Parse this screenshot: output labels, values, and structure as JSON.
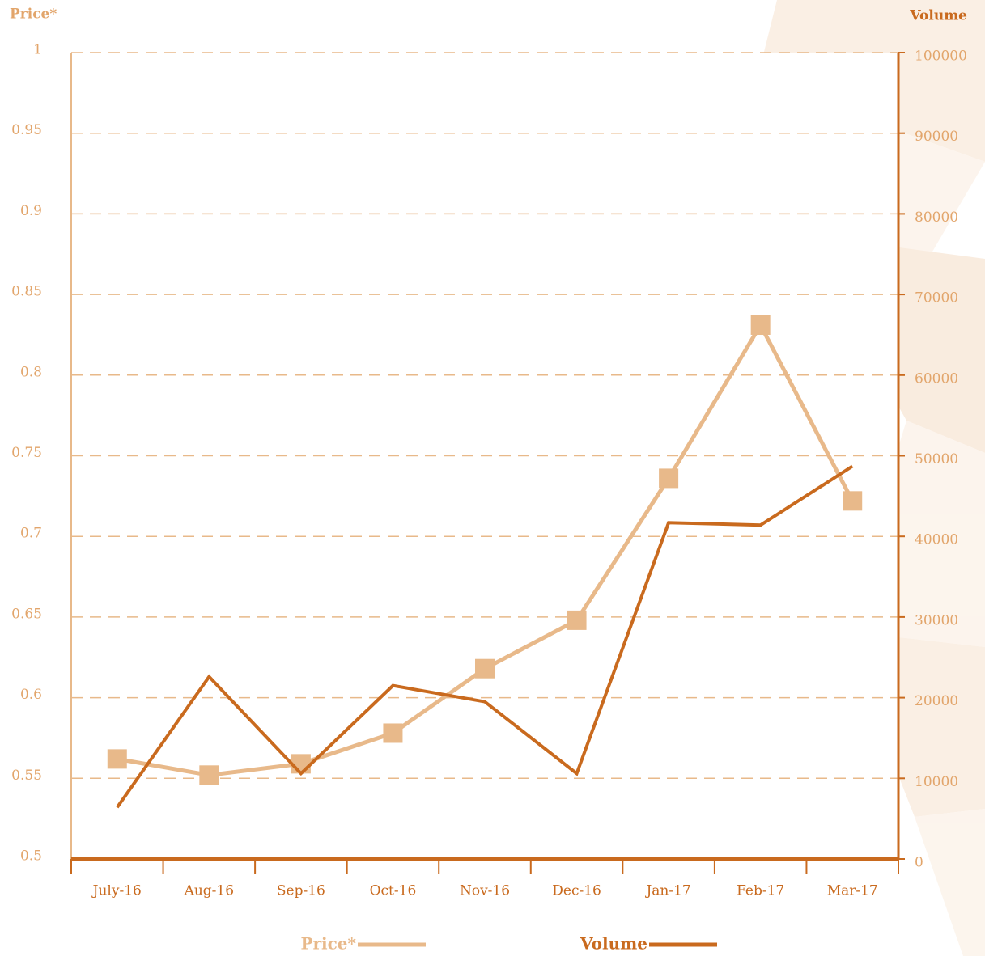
{
  "chart_data": {
    "type": "line",
    "ylabel": "Price*",
    "y2label": "Volume",
    "categories": [
      "July-16",
      "Aug-16",
      "Sep-16",
      "Oct-16",
      "Nov-16",
      "Dec-16",
      "Jan-17",
      "Feb-17",
      "Mar-17"
    ],
    "series": [
      {
        "name": "Price*",
        "color": "#e8b98a",
        "values": [
          0.562,
          0.552,
          0.559,
          0.578,
          0.618,
          0.648,
          0.736,
          0.831,
          0.722
        ]
      },
      {
        "name": "Volume",
        "color": "#c96a1e",
        "axis": "y2",
        "values": [
          6400,
          22600,
          10600,
          21500,
          19500,
          10600,
          41700,
          41400,
          48700
        ]
      }
    ],
    "ylim": [
      0.5,
      1
    ],
    "yticks": [
      0.5,
      0.55,
      0.6,
      0.65,
      0.7,
      0.75,
      0.8,
      0.85,
      0.9,
      0.95,
      1
    ],
    "y2lim": [
      0,
      100000
    ],
    "y2ticks": [
      0,
      10000,
      20000,
      30000,
      40000,
      50000,
      60000,
      70000,
      80000,
      90000,
      100000
    ],
    "grid": true
  }
}
